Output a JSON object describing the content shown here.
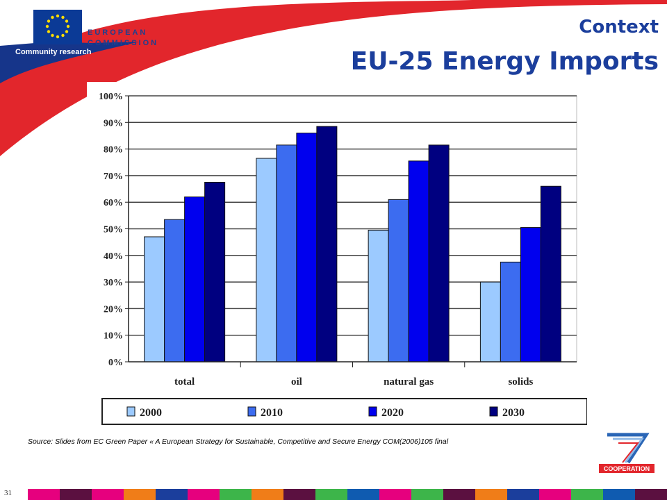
{
  "header": {
    "org_line1": "EUROPEAN",
    "org_line2": "COMMISSION",
    "org_sub": "Community research",
    "title_context": "Context",
    "title_main": "EU-25 Energy Imports"
  },
  "chart_data": {
    "type": "bar",
    "categories": [
      "total",
      "oil",
      "natural gas",
      "solids"
    ],
    "series": [
      {
        "name": "2000",
        "values": [
          47,
          76.5,
          49.5,
          30
        ],
        "color": "#9ccaff"
      },
      {
        "name": "2010",
        "values": [
          53.5,
          81.5,
          61,
          37.5
        ],
        "color": "#3c6cf0"
      },
      {
        "name": "2020",
        "values": [
          62,
          86,
          75.5,
          50.5
        ],
        "color": "#0000ee"
      },
      {
        "name": "2030",
        "values": [
          67.5,
          88.5,
          81.5,
          66
        ],
        "color": "#000080"
      }
    ],
    "ylim": [
      0,
      100
    ],
    "yticks": [
      "0%",
      "10%",
      "20%",
      "30%",
      "40%",
      "50%",
      "60%",
      "70%",
      "80%",
      "90%",
      "100%"
    ],
    "grid": true,
    "legend_position": "bottom"
  },
  "source_text": "Source: Slides from EC Green Paper « A European Strategy for Sustainable, Competitive and Secure Energy COM(2006)105  final",
  "logo_label": "COOPERATION",
  "page_number": "31",
  "colors": {
    "title": "#1b3e9c",
    "swoosh_red": "#e2262c",
    "swoosh_blue": "#16358a",
    "eu_blue": "#0b3a96"
  },
  "stripe_colors": [
    "#e6007e",
    "#5b1040",
    "#e6007e",
    "#f07d18",
    "#1b3e9c",
    "#e6007e",
    "#3db54a",
    "#f07d18",
    "#5b1040",
    "#3db54a",
    "#0f5bb0",
    "#e6007e",
    "#3db54a",
    "#5b1040",
    "#f07d18",
    "#1b3e9c",
    "#e6007e",
    "#3db54a",
    "#0f5bb0",
    "#5b1040"
  ]
}
